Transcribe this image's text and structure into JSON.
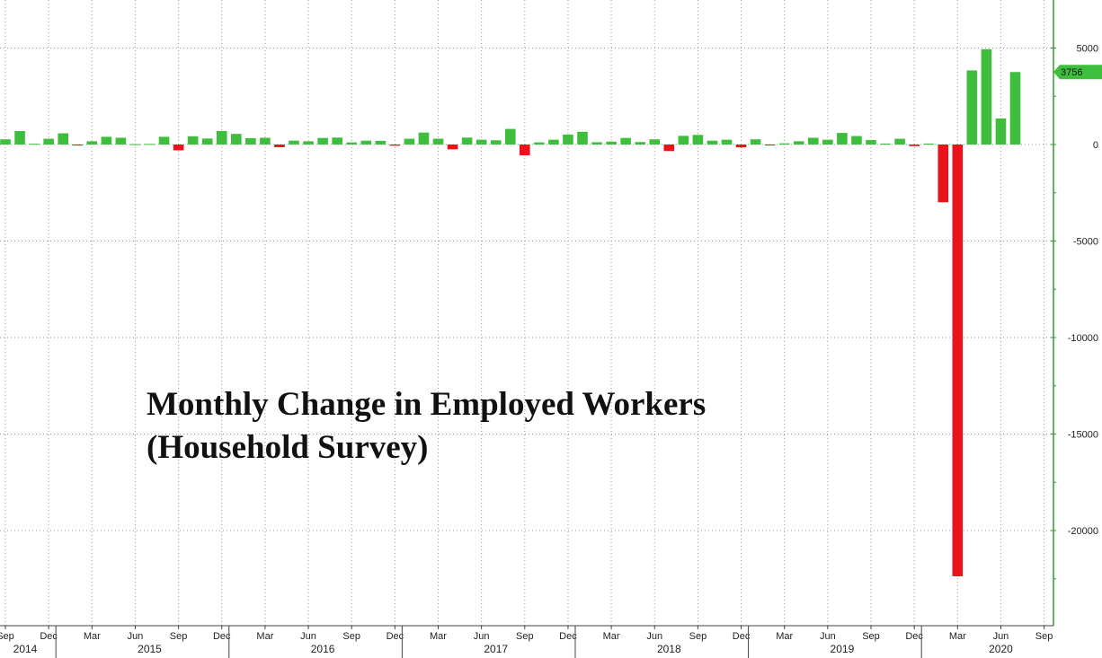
{
  "chart_data": {
    "type": "bar",
    "title_lines": [
      "Monthly Change in Employed Workers",
      "(Household Survey)"
    ],
    "xlabel": "",
    "ylabel": "",
    "ylim": [
      -25000,
      7500
    ],
    "y_ticks": [
      5000,
      0,
      -5000,
      -10000,
      -15000,
      -20000
    ],
    "last_value_label": "3756",
    "month_labels": [
      "Sep",
      "Dec",
      "Mar",
      "Jun",
      "Sep",
      "Dec",
      "Mar",
      "Jun",
      "Sep",
      "Dec",
      "Mar",
      "Jun",
      "Sep",
      "Dec",
      "Mar",
      "Jun",
      "Sep",
      "Dec",
      "Mar",
      "Jun",
      "Sep",
      "Dec",
      "Mar",
      "Jun",
      "Sep"
    ],
    "year_labels": [
      "2014",
      "2015",
      "2016",
      "2017",
      "2018",
      "2019",
      "2020"
    ],
    "colors": {
      "positive": "#3dbf3d",
      "negative": "#e8141b",
      "axis": "#2e9e2e"
    },
    "values": [
      270,
      700,
      40,
      300,
      580,
      -50,
      170,
      400,
      350,
      20,
      30,
      400,
      -300,
      430,
      310,
      700,
      550,
      330,
      350,
      -140,
      200,
      170,
      340,
      360,
      110,
      200,
      190,
      -60,
      300,
      620,
      300,
      -250,
      360,
      250,
      220,
      810,
      -560,
      110,
      250,
      520,
      660,
      120,
      150,
      340,
      130,
      270,
      -340,
      450,
      500,
      200,
      250,
      -150,
      270,
      -40,
      60,
      170,
      350,
      250,
      600,
      440,
      230,
      50,
      300,
      -80,
      50,
      -2990,
      -22370,
      3840,
      4940,
      1350,
      3756
    ]
  }
}
